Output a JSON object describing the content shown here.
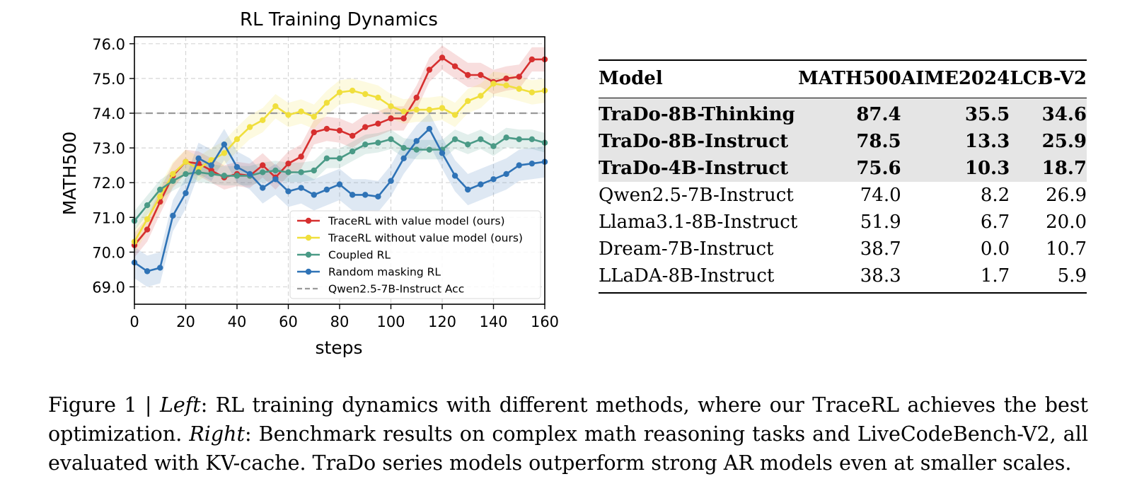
{
  "chart_data": {
    "type": "line",
    "title": "RL Training Dynamics",
    "xlabel": "steps",
    "ylabel": "MATH500",
    "xlim": [
      0,
      160
    ],
    "ylim": [
      68.5,
      76.2
    ],
    "xticks": [
      "0",
      "20",
      "40",
      "60",
      "80",
      "100",
      "120",
      "140",
      "160"
    ],
    "yticks": [
      "69.0",
      "70.0",
      "71.0",
      "72.0",
      "73.0",
      "74.0",
      "75.0",
      "76.0"
    ],
    "grid": true,
    "legend_position": "lower-right",
    "series": [
      {
        "name": "TraceRL with value model (ours)",
        "color": "#d62f2f",
        "x": [
          0,
          5,
          10,
          15,
          20,
          25,
          30,
          35,
          40,
          45,
          50,
          55,
          60,
          65,
          70,
          75,
          80,
          85,
          90,
          95,
          100,
          105,
          110,
          115,
          120,
          125,
          130,
          135,
          140,
          145,
          150,
          155,
          160
        ],
        "y": [
          70.2,
          70.65,
          71.45,
          72.2,
          72.6,
          72.55,
          72.35,
          72.15,
          72.25,
          72.2,
          72.5,
          72.15,
          72.55,
          72.75,
          73.45,
          73.55,
          73.5,
          73.35,
          73.6,
          73.7,
          73.85,
          73.85,
          74.45,
          75.25,
          75.6,
          75.35,
          75.1,
          75.1,
          74.9,
          75.0,
          75.05,
          75.55,
          75.55
        ],
        "band": 0.35
      },
      {
        "name": "TraceRL without value model (ours)",
        "color": "#f0df3c",
        "x": [
          0,
          5,
          10,
          15,
          20,
          25,
          30,
          35,
          40,
          45,
          50,
          55,
          60,
          65,
          70,
          75,
          80,
          85,
          90,
          95,
          100,
          105,
          110,
          115,
          120,
          125,
          130,
          135,
          140,
          145,
          150,
          155,
          160
        ],
        "y": [
          70.3,
          70.95,
          71.6,
          72.25,
          72.6,
          72.4,
          72.65,
          72.85,
          73.25,
          73.6,
          73.8,
          74.2,
          73.95,
          74.05,
          73.9,
          74.3,
          74.6,
          74.65,
          74.55,
          74.45,
          74.2,
          74.05,
          74.1,
          74.1,
          74.15,
          73.95,
          74.35,
          74.5,
          74.85,
          74.8,
          74.7,
          74.6,
          74.65
        ],
        "band": 0.35
      },
      {
        "name": "Coupled RL",
        "color": "#4a9a86",
        "x": [
          0,
          5,
          10,
          15,
          20,
          25,
          30,
          35,
          40,
          45,
          50,
          55,
          60,
          65,
          70,
          75,
          80,
          85,
          90,
          95,
          100,
          105,
          110,
          115,
          120,
          125,
          130,
          135,
          140,
          145,
          150,
          155,
          160
        ],
        "y": [
          70.9,
          71.35,
          71.8,
          72.05,
          72.25,
          72.3,
          72.25,
          72.2,
          72.2,
          72.2,
          72.3,
          72.35,
          72.3,
          72.3,
          72.35,
          72.7,
          72.7,
          72.9,
          73.1,
          73.15,
          73.25,
          73.0,
          72.95,
          72.95,
          72.95,
          73.25,
          73.1,
          73.25,
          73.05,
          73.3,
          73.25,
          73.25,
          73.15
        ],
        "band": 0.28
      },
      {
        "name": "Random masking RL",
        "color": "#2f73b6",
        "x": [
          0,
          5,
          10,
          15,
          20,
          25,
          30,
          35,
          40,
          45,
          50,
          55,
          60,
          65,
          70,
          75,
          80,
          85,
          90,
          95,
          100,
          105,
          110,
          115,
          120,
          125,
          130,
          135,
          140,
          145,
          150,
          155,
          160
        ],
        "y": [
          69.7,
          69.45,
          69.55,
          71.05,
          71.7,
          72.7,
          72.5,
          73.1,
          72.45,
          72.25,
          71.85,
          72.1,
          71.75,
          71.85,
          71.65,
          71.8,
          71.95,
          71.65,
          71.65,
          71.6,
          72.05,
          72.7,
          73.2,
          73.55,
          72.85,
          72.2,
          71.8,
          71.95,
          72.1,
          72.25,
          72.5,
          72.55,
          72.6
        ],
        "band": 0.45
      }
    ],
    "reference_line": {
      "name": "Qwen2.5-7B-Instruct Acc",
      "y": 74.0,
      "color": "#9a9a9a",
      "style": "dashed"
    }
  },
  "table": {
    "headers": [
      "Model",
      "MATH500",
      "AIME2024",
      "LCB-V2"
    ],
    "rows": [
      {
        "model": "TraDo-8B-Thinking",
        "math500": "87.4",
        "aime2024": "35.5",
        "lcb": "34.6",
        "highlight": true
      },
      {
        "model": "TraDo-8B-Instruct",
        "math500": "78.5",
        "aime2024": "13.3",
        "lcb": "25.9",
        "highlight": true
      },
      {
        "model": "TraDo-4B-Instruct",
        "math500": "75.6",
        "aime2024": "10.3",
        "lcb": "18.7",
        "highlight": true
      },
      {
        "model": "Qwen2.5-7B-Instruct",
        "math500": "74.0",
        "aime2024": "8.2",
        "lcb": "26.9",
        "highlight": false
      },
      {
        "model": "Llama3.1-8B-Instruct",
        "math500": "51.9",
        "aime2024": "6.7",
        "lcb": "20.0",
        "highlight": false
      },
      {
        "model": "Dream-7B-Instruct",
        "math500": "38.7",
        "aime2024": "0.0",
        "lcb": "10.7",
        "highlight": false
      },
      {
        "model": "LLaDA-8B-Instruct",
        "math500": "38.3",
        "aime2024": "1.7",
        "lcb": "5.9",
        "highlight": false
      }
    ]
  },
  "caption": {
    "label": "Figure 1 | ",
    "left_word": "Left",
    "left_text": ": RL training dynamics with different methods, where our TraceRL achieves the best optimization. ",
    "right_word": "Right",
    "right_text": ": Benchmark results on complex math reasoning tasks and LiveCodeBench-V2, all evaluated with KV-cache. TraDo series models outperform strong AR models even at smaller scales."
  }
}
